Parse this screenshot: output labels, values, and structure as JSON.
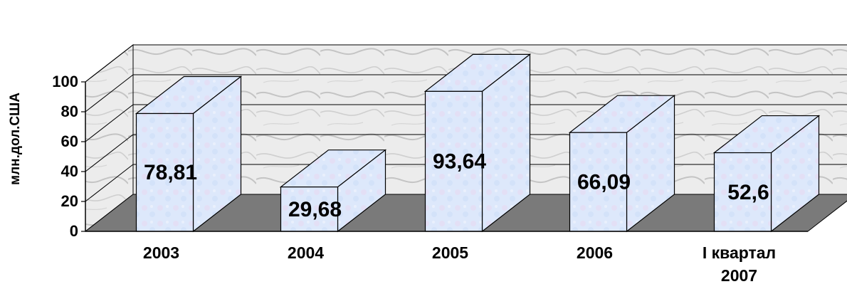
{
  "chart_data": {
    "type": "bar",
    "style": "3d-column",
    "categories": [
      [
        "2003"
      ],
      [
        "2004"
      ],
      [
        "2005"
      ],
      [
        "2006"
      ],
      [
        "I квартал",
        "2007"
      ]
    ],
    "values": [
      78.81,
      29.68,
      93.64,
      66.09,
      52.6
    ],
    "data_labels": [
      "78,81",
      "29,68",
      "93,64",
      "66,09",
      "52,6"
    ],
    "ylabel": "млн.дол.США",
    "ylim": [
      0,
      100
    ],
    "yticks": [
      0,
      20,
      40,
      60,
      80,
      100
    ],
    "grid": true,
    "legend": "none",
    "colors": {
      "bar_front": "#dce8fb",
      "bar_side": "#cfdcf5",
      "bar_top": "#c7d6f1",
      "floor": "#7a7a7a",
      "back_wall": "#e9e9e9",
      "side_wall": "#f2f2f2",
      "gridline": "#000000",
      "text": "#000000"
    }
  }
}
